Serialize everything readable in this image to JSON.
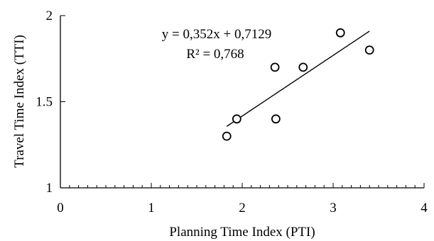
{
  "chart_data": {
    "type": "scatter",
    "title": "",
    "xlabel": "Planning Time Index (PTI)",
    "ylabel": "Travel Time Index (TTI)",
    "xlim": [
      0,
      4
    ],
    "ylim": [
      1,
      2
    ],
    "x_ticks": [
      0,
      1,
      2,
      3,
      4
    ],
    "x_tick_labels": [
      "0",
      "1",
      "2",
      "3",
      "4"
    ],
    "x_minor_step": 0.1,
    "y_ticks": [
      1,
      1.5,
      2
    ],
    "y_tick_labels": [
      "1",
      "1.5",
      "2"
    ],
    "grid": false,
    "legend": "none",
    "marker": "open-circle",
    "points": [
      {
        "x": 1.83,
        "y": 1.3
      },
      {
        "x": 1.94,
        "y": 1.4
      },
      {
        "x": 2.36,
        "y": 1.7
      },
      {
        "x": 2.37,
        "y": 1.4
      },
      {
        "x": 2.67,
        "y": 1.7
      },
      {
        "x": 3.08,
        "y": 1.9
      },
      {
        "x": 3.4,
        "y": 1.8
      }
    ],
    "trendline": {
      "slope": 0.352,
      "intercept": 0.7129,
      "x_range": [
        1.83,
        3.4
      ],
      "equation_label": "y = 0,352x + 0,7129",
      "r2_label": "R² = 0,768"
    },
    "colors": {
      "marker": "#000000",
      "line": "#000000",
      "axis": "#000000"
    }
  }
}
